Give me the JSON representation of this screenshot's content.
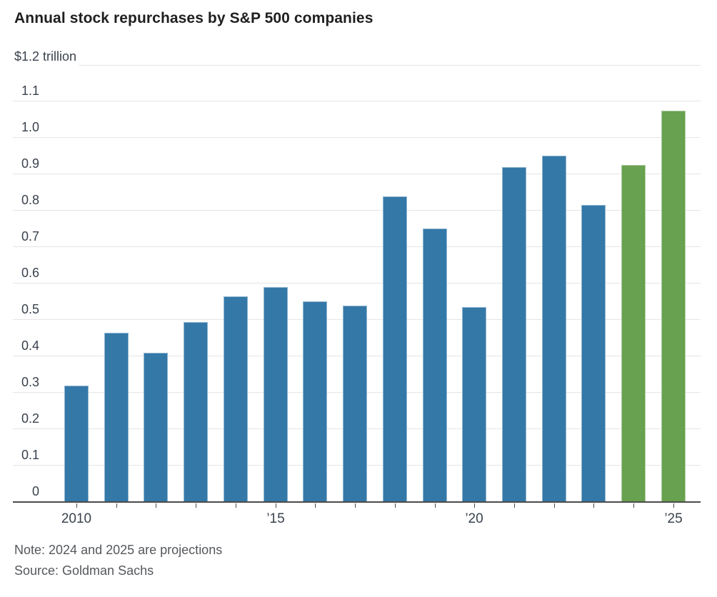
{
  "chart_data": {
    "type": "bar",
    "title": "Annual stock repurchases by S&P 500 companies",
    "unit": "trillion USD",
    "ylim": [
      0,
      1.2
    ],
    "ytick_step": 0.1,
    "grid": true,
    "yticks": [
      {
        "v": 0,
        "label": "0"
      },
      {
        "v": 0.1,
        "label": "0.1"
      },
      {
        "v": 0.2,
        "label": "0.2"
      },
      {
        "v": 0.3,
        "label": "0.3"
      },
      {
        "v": 0.4,
        "label": "0.4"
      },
      {
        "v": 0.5,
        "label": "0.5"
      },
      {
        "v": 0.6,
        "label": "0.6"
      },
      {
        "v": 0.7,
        "label": "0.7"
      },
      {
        "v": 0.8,
        "label": "0.8"
      },
      {
        "v": 0.9,
        "label": "0.9"
      },
      {
        "v": 1.0,
        "label": "1.0"
      },
      {
        "v": 1.1,
        "label": "1.1"
      },
      {
        "v": 1.2,
        "label": "$1.2 trillion",
        "unit_row": true
      }
    ],
    "xticks": [
      {
        "year": 2010,
        "label": "2010"
      },
      {
        "year": 2015,
        "label": "’15"
      },
      {
        "year": 2020,
        "label": "’20"
      },
      {
        "year": 2025,
        "label": "’25"
      }
    ],
    "bars": [
      {
        "year": 2010,
        "value": 0.32,
        "type": "actual"
      },
      {
        "year": 2011,
        "value": 0.465,
        "type": "actual"
      },
      {
        "year": 2012,
        "value": 0.41,
        "type": "actual"
      },
      {
        "year": 2013,
        "value": 0.495,
        "type": "actual"
      },
      {
        "year": 2014,
        "value": 0.565,
        "type": "actual"
      },
      {
        "year": 2015,
        "value": 0.59,
        "type": "actual"
      },
      {
        "year": 2016,
        "value": 0.55,
        "type": "actual"
      },
      {
        "year": 2017,
        "value": 0.54,
        "type": "actual"
      },
      {
        "year": 2018,
        "value": 0.84,
        "type": "actual"
      },
      {
        "year": 2019,
        "value": 0.75,
        "type": "actual"
      },
      {
        "year": 2020,
        "value": 0.535,
        "type": "actual"
      },
      {
        "year": 2021,
        "value": 0.92,
        "type": "actual"
      },
      {
        "year": 2022,
        "value": 0.95,
        "type": "actual"
      },
      {
        "year": 2023,
        "value": 0.815,
        "type": "actual"
      },
      {
        "year": 2024,
        "value": 0.925,
        "type": "projection"
      },
      {
        "year": 2025,
        "value": 1.075,
        "type": "projection"
      }
    ],
    "colors": {
      "actual": "#3478a8",
      "projection": "#68a14f",
      "gridline": "#e5e5e5",
      "axis": "#4b4b4b"
    },
    "note": "Note: 2024 and 2025 are projections",
    "source": "Source: Goldman Sachs"
  }
}
